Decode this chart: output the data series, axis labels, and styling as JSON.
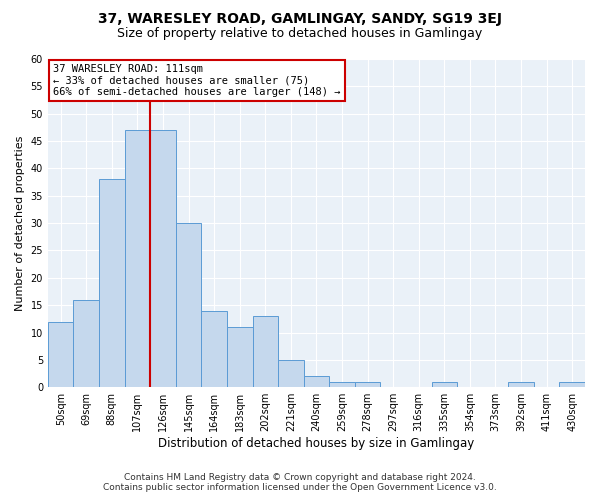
{
  "title": "37, WARESLEY ROAD, GAMLINGAY, SANDY, SG19 3EJ",
  "subtitle": "Size of property relative to detached houses in Gamlingay",
  "xlabel": "Distribution of detached houses by size in Gamlingay",
  "ylabel": "Number of detached properties",
  "bar_color": "#c5d8ed",
  "bar_edge_color": "#5b9bd5",
  "background_color": "#eaf1f8",
  "categories": [
    "50sqm",
    "69sqm",
    "88sqm",
    "107sqm",
    "126sqm",
    "145sqm",
    "164sqm",
    "183sqm",
    "202sqm",
    "221sqm",
    "240sqm",
    "259sqm",
    "278sqm",
    "297sqm",
    "316sqm",
    "335sqm",
    "354sqm",
    "373sqm",
    "392sqm",
    "411sqm",
    "430sqm"
  ],
  "values": [
    12,
    16,
    38,
    47,
    47,
    30,
    14,
    11,
    13,
    5,
    2,
    1,
    1,
    0,
    0,
    1,
    0,
    0,
    1,
    0,
    1
  ],
  "vline_x": 3.5,
  "vline_color": "#cc0000",
  "annotation_title": "37 WARESLEY ROAD: 111sqm",
  "annotation_line1": "← 33% of detached houses are smaller (75)",
  "annotation_line2": "66% of semi-detached houses are larger (148) →",
  "annotation_box_color": "#ffffff",
  "annotation_box_edge": "#cc0000",
  "ylim": [
    0,
    60
  ],
  "yticks": [
    0,
    5,
    10,
    15,
    20,
    25,
    30,
    35,
    40,
    45,
    50,
    55,
    60
  ],
  "footnote1": "Contains HM Land Registry data © Crown copyright and database right 2024.",
  "footnote2": "Contains public sector information licensed under the Open Government Licence v3.0.",
  "title_fontsize": 10,
  "subtitle_fontsize": 9,
  "xlabel_fontsize": 8.5,
  "ylabel_fontsize": 8,
  "tick_fontsize": 7,
  "annotation_fontsize": 7.5,
  "footnote_fontsize": 6.5
}
